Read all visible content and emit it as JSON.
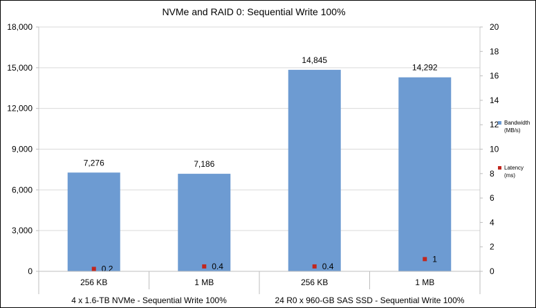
{
  "chart_data": {
    "type": "bar",
    "title": "NVMe and RAID 0: Sequential Write 100%",
    "categories": [
      "256 KB",
      "1 MB",
      "256 KB",
      "1 MB"
    ],
    "groups": [
      {
        "label": "4 x 1.6-TB NVMe - Sequential Write 100%",
        "span": [
          0,
          1
        ]
      },
      {
        "label": "24 R0 x 960-GB SAS SSD - Sequential Write 100%",
        "span": [
          2,
          3
        ]
      }
    ],
    "series": [
      {
        "name": "Bandwidth (MB/s)",
        "legend_lines": [
          "Bandwidth",
          "(MB/s)"
        ],
        "type": "bar",
        "axis": "left",
        "color": "#6d9bd2",
        "values": [
          7276,
          7186,
          14845,
          14292
        ],
        "labels": [
          "7,276",
          "7,186",
          "14,845",
          "14,292"
        ]
      },
      {
        "name": "Latency (ms)",
        "legend_lines": [
          "Latency",
          "(ms)"
        ],
        "type": "scatter",
        "axis": "right",
        "color": "#c0271f",
        "values": [
          0.2,
          0.4,
          0.4,
          1
        ],
        "labels": [
          "0.2",
          "0.4",
          "0.4",
          "1"
        ]
      }
    ],
    "y_left": {
      "ylim": [
        0,
        18000
      ],
      "ticks": [
        0,
        3000,
        6000,
        9000,
        12000,
        15000,
        18000
      ],
      "tick_labels": [
        "0",
        "3,000",
        "6,000",
        "9,000",
        "12,000",
        "15,000",
        "18,000"
      ]
    },
    "y_right": {
      "ylim": [
        0,
        20
      ],
      "ticks": [
        0,
        2,
        4,
        6,
        8,
        10,
        12,
        14,
        16,
        18,
        20
      ],
      "tick_labels": [
        "0",
        "2",
        "4",
        "6",
        "8",
        "10",
        "12",
        "14",
        "16",
        "18",
        "20"
      ]
    },
    "grid": true,
    "legend_position": "right"
  }
}
